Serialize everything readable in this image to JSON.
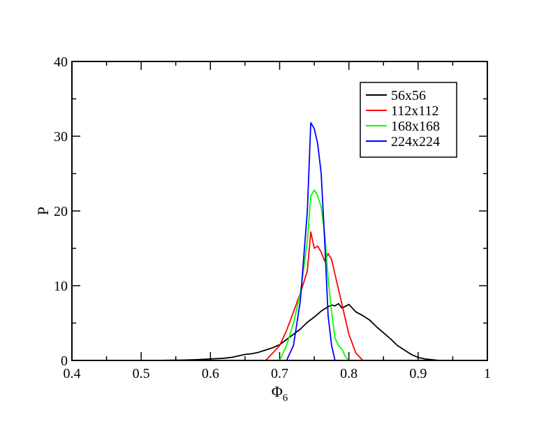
{
  "chart_data": {
    "type": "line",
    "title": "",
    "xlabel": "Φ",
    "xlabel_subscript": "6",
    "ylabel": "P",
    "xlim": [
      0.4,
      1.0
    ],
    "ylim": [
      0,
      40
    ],
    "xticks": [
      "0.4",
      "0.5",
      "0.6",
      "0.7",
      "0.8",
      "0.9",
      "1"
    ],
    "yticks": [
      "0",
      "10",
      "20",
      "30",
      "40"
    ],
    "grid": false,
    "legend_position": "top-right",
    "series": [
      {
        "name": "56x56",
        "color": "#000000",
        "points": [
          [
            0.52,
            0.0
          ],
          [
            0.56,
            0.05
          ],
          [
            0.58,
            0.1
          ],
          [
            0.6,
            0.2
          ],
          [
            0.62,
            0.3
          ],
          [
            0.63,
            0.4
          ],
          [
            0.64,
            0.6
          ],
          [
            0.65,
            0.8
          ],
          [
            0.66,
            0.9
          ],
          [
            0.67,
            1.1
          ],
          [
            0.68,
            1.4
          ],
          [
            0.69,
            1.7
          ],
          [
            0.7,
            2.1
          ],
          [
            0.71,
            2.8
          ],
          [
            0.72,
            3.5
          ],
          [
            0.73,
            4.2
          ],
          [
            0.74,
            5.1
          ],
          [
            0.75,
            5.8
          ],
          [
            0.76,
            6.6
          ],
          [
            0.77,
            7.2
          ],
          [
            0.775,
            7.4
          ],
          [
            0.78,
            7.3
          ],
          [
            0.785,
            7.6
          ],
          [
            0.79,
            7.0
          ],
          [
            0.8,
            7.5
          ],
          [
            0.81,
            6.5
          ],
          [
            0.82,
            6.0
          ],
          [
            0.83,
            5.4
          ],
          [
            0.84,
            4.5
          ],
          [
            0.85,
            3.7
          ],
          [
            0.86,
            2.9
          ],
          [
            0.87,
            2.0
          ],
          [
            0.88,
            1.4
          ],
          [
            0.89,
            0.8
          ],
          [
            0.9,
            0.4
          ],
          [
            0.91,
            0.2
          ],
          [
            0.92,
            0.1
          ],
          [
            0.93,
            0.0
          ]
        ]
      },
      {
        "name": "112x112",
        "color": "#ff0000",
        "points": [
          [
            0.68,
            0.0
          ],
          [
            0.69,
            1.0
          ],
          [
            0.7,
            2.0
          ],
          [
            0.71,
            4.0
          ],
          [
            0.72,
            6.5
          ],
          [
            0.73,
            9.0
          ],
          [
            0.74,
            12.0
          ],
          [
            0.745,
            17.2
          ],
          [
            0.75,
            15.0
          ],
          [
            0.755,
            15.3
          ],
          [
            0.76,
            14.5
          ],
          [
            0.765,
            13.3
          ],
          [
            0.77,
            14.3
          ],
          [
            0.775,
            13.5
          ],
          [
            0.78,
            11.5
          ],
          [
            0.79,
            7.5
          ],
          [
            0.8,
            3.5
          ],
          [
            0.81,
            1.0
          ],
          [
            0.82,
            0.0
          ]
        ]
      },
      {
        "name": "168x168",
        "color": "#00ff00",
        "points": [
          [
            0.7,
            0.0
          ],
          [
            0.71,
            2.0
          ],
          [
            0.72,
            5.0
          ],
          [
            0.73,
            9.0
          ],
          [
            0.74,
            16.0
          ],
          [
            0.745,
            22.0
          ],
          [
            0.75,
            22.8
          ],
          [
            0.755,
            22.0
          ],
          [
            0.76,
            20.5
          ],
          [
            0.765,
            17.0
          ],
          [
            0.77,
            11.0
          ],
          [
            0.775,
            6.5
          ],
          [
            0.78,
            3.0
          ],
          [
            0.785,
            2.0
          ],
          [
            0.79,
            1.5
          ],
          [
            0.795,
            0.5
          ],
          [
            0.8,
            0.0
          ]
        ]
      },
      {
        "name": "224x224",
        "color": "#0000ff",
        "points": [
          [
            0.71,
            0.0
          ],
          [
            0.72,
            2.0
          ],
          [
            0.73,
            8.0
          ],
          [
            0.74,
            20.0
          ],
          [
            0.745,
            31.8
          ],
          [
            0.75,
            31.0
          ],
          [
            0.755,
            29.0
          ],
          [
            0.76,
            25.0
          ],
          [
            0.765,
            16.0
          ],
          [
            0.77,
            6.0
          ],
          [
            0.775,
            2.0
          ],
          [
            0.78,
            0.0
          ]
        ]
      }
    ]
  }
}
